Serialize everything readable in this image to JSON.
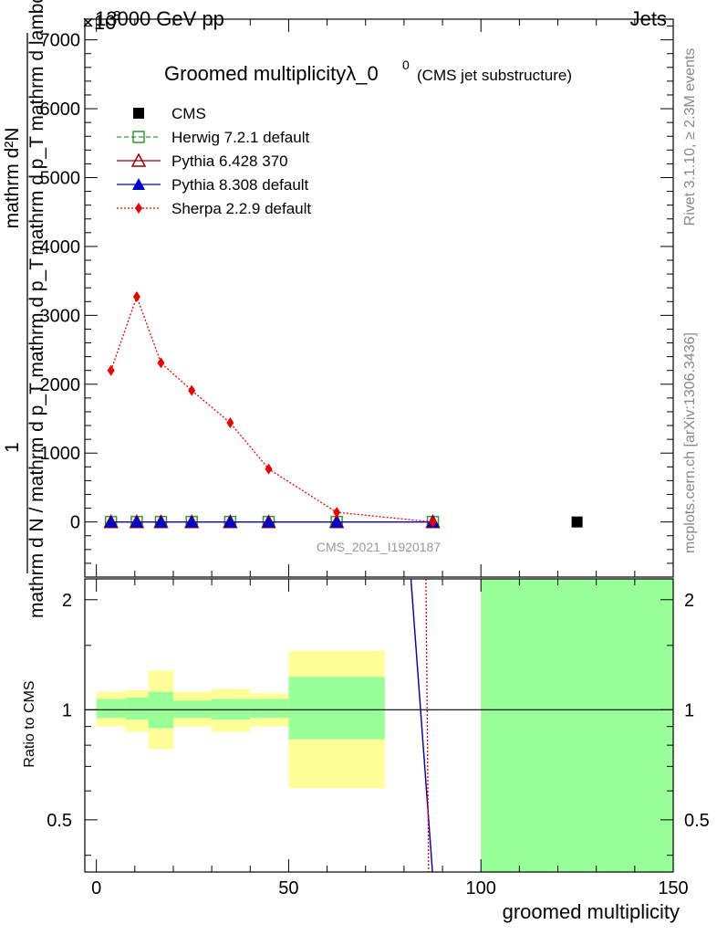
{
  "header": {
    "energy": "13000 GeV pp",
    "category": "Jets",
    "exponent_label": "×10",
    "exponent_power": "3"
  },
  "side_labels": {
    "rivet": "Rivet 3.1.10, ≥ 2.3M events",
    "mcplots": "mcplots.cern.ch [arXiv:1306.3436]"
  },
  "chart_data": [
    {
      "type": "line",
      "title": "Groomed multiplicityλ_0",
      "title_superscript": "0",
      "subtitle": "(CMS jet substructure)",
      "watermark": "CMS_2021_I1920187",
      "ylabel_numerator": "mathrm d²N",
      "ylabel_numerator_b": "mathrm d p_T mathrm d lambda",
      "ylabel_denominator": "mathrm d N / mathrm d p_T mathrm d p_T",
      "ylabel_one": "1",
      "ylim": [
        -800,
        7300
      ],
      "yticks": [
        0,
        1000,
        2000,
        3000,
        4000,
        5000,
        6000,
        7000
      ],
      "ytick_labels": [
        "0",
        "1000",
        "2000",
        "3000",
        "4000",
        "5000",
        "6000",
        "7000"
      ],
      "legend_position": "top-left",
      "series": [
        {
          "name": "CMS",
          "color": "#000000",
          "marker": "square",
          "x": [
            125
          ],
          "y": [
            0
          ]
        },
        {
          "name": "Herwig 7.2.1 default",
          "color": "#339933",
          "marker": "open-square",
          "line": "dashed",
          "x": [
            3.8,
            10.5,
            16.8,
            24.8,
            34.8,
            44.8,
            62.5,
            87.5
          ],
          "y": [
            0,
            0,
            0,
            0,
            0,
            0,
            0,
            0
          ]
        },
        {
          "name": "Pythia 6.428 370",
          "color": "#990000",
          "marker": "open-triangle",
          "line": "solid",
          "x": [
            3.8,
            10.5,
            16.8,
            24.8,
            34.8,
            44.8,
            62.5,
            87.5
          ],
          "y": [
            0,
            0,
            0,
            0,
            0,
            0,
            0,
            0
          ]
        },
        {
          "name": "Pythia 8.308 default",
          "color": "#0000cc",
          "marker": "triangle",
          "line": "solid",
          "x": [
            3.8,
            10.5,
            16.8,
            24.8,
            34.8,
            44.8,
            62.5,
            87.5
          ],
          "y": [
            0,
            0,
            0,
            0,
            0,
            0,
            0,
            0
          ]
        },
        {
          "name": "Sherpa 2.2.9 default",
          "color": "#ee0000",
          "marker": "diamond",
          "line": "dotted",
          "x": [
            3.8,
            10.5,
            16.8,
            24.8,
            34.8,
            44.8,
            62.5,
            87.5
          ],
          "y": [
            2200,
            3270,
            2310,
            1910,
            1440,
            770,
            140,
            0
          ]
        }
      ]
    },
    {
      "type": "area",
      "ylabel": "Ratio to CMS",
      "xlabel": "groomed multiplicity",
      "xlim": [
        -3,
        150
      ],
      "xticks": [
        0,
        50,
        100,
        150
      ],
      "xtick_labels": [
        "0",
        "50",
        "100",
        "150"
      ],
      "ylim": [
        0.36,
        2.28
      ],
      "yticks": [
        0.5,
        1,
        2
      ],
      "ytick_labels": [
        "0.5",
        "1",
        "2"
      ],
      "log_scale_y": true,
      "reference_line": 1,
      "uncertainty_bands": [
        {
          "x0": 0,
          "x1": 7.5,
          "stat": [
            0.95,
            1.07
          ],
          "total": [
            0.9,
            1.12
          ]
        },
        {
          "x0": 7.5,
          "x1": 13.5,
          "stat": [
            0.94,
            1.08
          ],
          "total": [
            0.87,
            1.13
          ]
        },
        {
          "x0": 13.5,
          "x1": 20,
          "stat": [
            0.89,
            1.12
          ],
          "total": [
            0.78,
            1.28
          ]
        },
        {
          "x0": 20,
          "x1": 30,
          "stat": [
            0.95,
            1.06
          ],
          "total": [
            0.9,
            1.12
          ]
        },
        {
          "x0": 30,
          "x1": 40,
          "stat": [
            0.94,
            1.07
          ],
          "total": [
            0.87,
            1.14
          ]
        },
        {
          "x0": 40,
          "x1": 50,
          "stat": [
            0.95,
            1.07
          ],
          "total": [
            0.9,
            1.11
          ]
        },
        {
          "x0": 50,
          "x1": 75,
          "stat": [
            0.83,
            1.23
          ],
          "total": [
            0.61,
            1.45
          ]
        },
        {
          "x0": 100,
          "x1": 150,
          "stat": [
            0.36,
            2.28
          ],
          "total": [
            0.36,
            2.28
          ]
        }
      ],
      "ratio_lines": [
        {
          "name": "Pythia 6.428 370",
          "color": "#990000",
          "points": [
            [
              81.8,
              2.28
            ],
            [
              87.4,
              0.36
            ]
          ]
        },
        {
          "name": "Pythia 8.308 default",
          "color": "#0000cc",
          "points": [
            [
              81.8,
              2.28
            ],
            [
              87.4,
              0.36
            ]
          ]
        },
        {
          "name": "Sherpa 2.2.9 default",
          "color": "#ee0000",
          "line": "dotted",
          "points": [
            [
              85.7,
              2.28
            ],
            [
              86.4,
              0.36
            ]
          ]
        }
      ],
      "colors": {
        "stat_band": "#99ff99",
        "total_band": "#ffff99"
      }
    }
  ]
}
